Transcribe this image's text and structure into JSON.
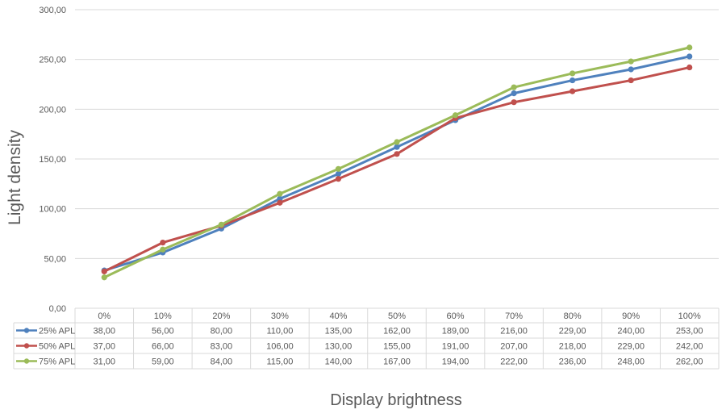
{
  "chart_data": {
    "type": "line",
    "ylabel": "Light density",
    "xlabel": "Display brightness",
    "categories": [
      "0%",
      "10%",
      "20%",
      "30%",
      "40%",
      "50%",
      "60%",
      "70%",
      "80%",
      "90%",
      "100%"
    ],
    "ylim": [
      0,
      300
    ],
    "y_ticks": [
      "0,00",
      "50,00",
      "100,00",
      "150,00",
      "200,00",
      "250,00",
      "300,00"
    ],
    "grid": true,
    "legend": "data-table",
    "series": [
      {
        "name": "25% APL",
        "color": "#4f81bd",
        "values": [
          38,
          56,
          80,
          110,
          135,
          162,
          189,
          216,
          229,
          240,
          253
        ],
        "labels": [
          "38,00",
          "56,00",
          "80,00",
          "110,00",
          "135,00",
          "162,00",
          "189,00",
          "216,00",
          "229,00",
          "240,00",
          "253,00"
        ]
      },
      {
        "name": "50% APL",
        "color": "#c0504d",
        "values": [
          37,
          66,
          83,
          106,
          130,
          155,
          191,
          207,
          218,
          229,
          242
        ],
        "labels": [
          "37,00",
          "66,00",
          "83,00",
          "106,00",
          "130,00",
          "155,00",
          "191,00",
          "207,00",
          "218,00",
          "229,00",
          "242,00"
        ]
      },
      {
        "name": "75% APL",
        "color": "#9bbb59",
        "values": [
          31,
          59,
          84,
          115,
          140,
          167,
          194,
          222,
          236,
          248,
          262
        ],
        "labels": [
          "31,00",
          "59,00",
          "84,00",
          "115,00",
          "140,00",
          "167,00",
          "194,00",
          "222,00",
          "236,00",
          "248,00",
          "262,00"
        ]
      }
    ]
  }
}
